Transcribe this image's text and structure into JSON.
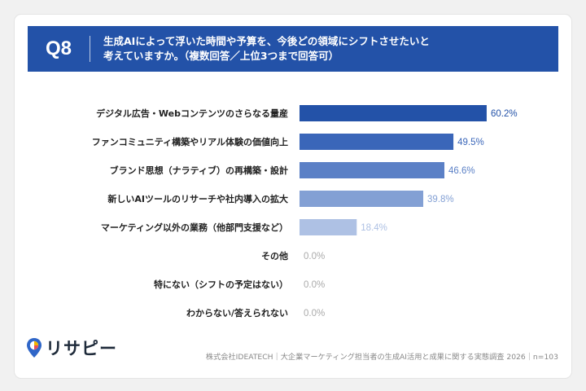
{
  "question": {
    "number": "Q8",
    "line1": "生成AIによって浮いた時間や予算を、今後どの領域にシフトさせたいと",
    "line2": "考えていますか。（複数回答／上位3つまで回答可）"
  },
  "logo": {
    "text": "リサピー"
  },
  "footer": {
    "text": "株式会社IDEATECH｜大企業マーケティング担当者の生成AI活用と成果に関する実態調査 2026｜n=103"
  },
  "colors": {
    "header": "#2352a8",
    "bars": [
      "#2352a8",
      "#3a66b9",
      "#5b80c6",
      "#83a0d4",
      "#aec1e4",
      "#c9d6ee",
      "#c9d6ee",
      "#c9d6ee"
    ],
    "labels": [
      "#2352a8",
      "#3a66b9",
      "#5b80c6",
      "#83a0d4",
      "#aec1e4",
      "#aaaaaa",
      "#aaaaaa",
      "#aaaaaa"
    ]
  },
  "chart_data": {
    "type": "bar",
    "orientation": "horizontal",
    "categories": [
      "デジタル広告・Webコンテンツのさらなる量産",
      "ファンコミュニティ構築やリアル体験の価値向上",
      "ブランド思想（ナラティブ）の再構築・設計",
      "新しいAIツールのリサーチや社内導入の拡大",
      "マーケティング以外の業務（他部門支援など）",
      "その他",
      "特にない（シフトの予定はない）",
      "わからない/答えられない"
    ],
    "values": [
      60.2,
      49.5,
      46.6,
      39.8,
      18.4,
      0.0,
      0.0,
      0.0
    ],
    "value_labels": [
      "60.2%",
      "49.5%",
      "46.6%",
      "39.8%",
      "18.4%",
      "0.0%",
      "0.0%",
      "0.0%"
    ],
    "xlim": [
      0,
      100
    ],
    "grid": false,
    "legend": "none"
  }
}
